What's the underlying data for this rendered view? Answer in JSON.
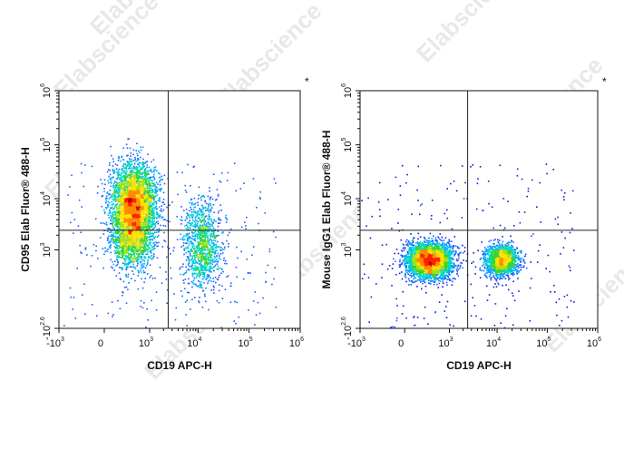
{
  "watermark": "Elabscience",
  "colors": {
    "density": [
      "#0a1bd6",
      "#1e5cff",
      "#00a6ff",
      "#00d6c8",
      "#33d633",
      "#a8e01a",
      "#ffe000",
      "#ff8a00",
      "#ff2000",
      "#c00000"
    ],
    "gate": "#222222",
    "frame": "#111111"
  },
  "chart_data": [
    {
      "type": "scatter",
      "title": "",
      "xlabel": "CD19 APC-H",
      "ylabel": "CD95 Elab Fluor® 488-H",
      "scale": "biexponential",
      "x_ticks": [
        {
          "base": "-10",
          "exp": "3",
          "v": -1000
        },
        {
          "base": "0",
          "exp": "",
          "v": 0
        },
        {
          "base": "10",
          "exp": "3",
          "v": 1000
        },
        {
          "base": "10",
          "exp": "4",
          "v": 10000
        },
        {
          "base": "10",
          "exp": "5",
          "v": 100000
        },
        {
          "base": "10",
          "exp": "6",
          "v": 1000000
        }
      ],
      "y_ticks": [
        {
          "base": "-10",
          "exp": "2.6",
          "v": -400
        },
        {
          "base": "10",
          "exp": "3",
          "v": 1000
        },
        {
          "base": "10",
          "exp": "4",
          "v": 10000
        },
        {
          "base": "10",
          "exp": "5",
          "v": 100000
        },
        {
          "base": "10",
          "exp": "6",
          "v": 1000000
        }
      ],
      "gate": {
        "x": 2500,
        "y": 2500
      },
      "corner_mark": "*",
      "populations": [
        {
          "x": 400,
          "y": 9000,
          "sx": 0.22,
          "sy": 0.35,
          "weight": 0.55
        },
        {
          "x": 350,
          "y": 1800,
          "sx": 0.22,
          "sy": 0.3,
          "weight": 0.25
        },
        {
          "x": 12000,
          "y": 1300,
          "sx": 0.18,
          "sy": 0.4,
          "weight": 0.2
        }
      ]
    },
    {
      "type": "scatter",
      "title": "",
      "xlabel": "CD19 APC-H",
      "ylabel": "Mouse IgG1 Elab Fluor® 488-H",
      "scale": "biexponential",
      "x_ticks": [
        {
          "base": "-10",
          "exp": "3",
          "v": -1000
        },
        {
          "base": "0",
          "exp": "",
          "v": 0
        },
        {
          "base": "10",
          "exp": "3",
          "v": 1000
        },
        {
          "base": "10",
          "exp": "4",
          "v": 10000
        },
        {
          "base": "10",
          "exp": "5",
          "v": 100000
        },
        {
          "base": "10",
          "exp": "6",
          "v": 1000000
        }
      ],
      "y_ticks": [
        {
          "base": "-10",
          "exp": "2.6",
          "v": -400
        },
        {
          "base": "10",
          "exp": "3",
          "v": 1000
        },
        {
          "base": "10",
          "exp": "4",
          "v": 10000
        },
        {
          "base": "10",
          "exp": "5",
          "v": 100000
        },
        {
          "base": "10",
          "exp": "6",
          "v": 1000000
        }
      ],
      "gate": {
        "x": 2500,
        "y": 2500
      },
      "corner_mark": "*",
      "populations": [
        {
          "x": 300,
          "y": 600,
          "sx": 0.22,
          "sy": 0.16,
          "weight": 0.7
        },
        {
          "x": 12000,
          "y": 600,
          "sx": 0.16,
          "sy": 0.14,
          "weight": 0.3
        }
      ]
    }
  ]
}
